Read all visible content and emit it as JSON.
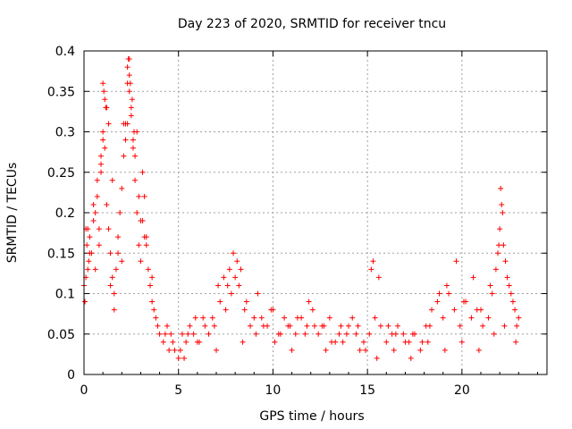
{
  "chart_data": {
    "type": "scatter",
    "title": "Day 223 of 2020, SRMTID for receiver tncu",
    "xlabel": "GPS time / hours",
    "ylabel": "SRMTID / TECUs",
    "xlim": [
      0,
      24.5
    ],
    "ylim": [
      0,
      0.4
    ],
    "xticks": [
      0,
      5,
      10,
      15,
      20
    ],
    "xtick_labels": [
      "0",
      "5",
      "10",
      "15",
      "20"
    ],
    "yticks": [
      0,
      0.05,
      0.1,
      0.15,
      0.2,
      0.25,
      0.3,
      0.35,
      0.4
    ],
    "ytick_labels": [
      "0",
      "0.05",
      "0.1",
      "0.15",
      "0.2",
      "0.25",
      "0.3",
      "0.35",
      "0.4"
    ],
    "grid": true,
    "marker": "+",
    "color": "#ff0000",
    "series": [
      {
        "name": "SRMTID",
        "x": [
          0.0,
          0.05,
          0.1,
          0.15,
          0.2,
          0.25,
          0.3,
          0.4,
          0.5,
          0.6,
          0.7,
          0.8,
          0.9,
          1.0,
          1.1,
          1.2,
          1.3,
          1.4,
          1.5,
          1.6,
          1.7,
          1.8,
          1.9,
          2.0,
          2.1,
          2.2,
          2.3,
          2.4,
          2.5,
          2.6,
          2.7,
          2.8,
          2.9,
          3.0,
          3.1,
          3.2,
          3.3,
          3.4,
          3.5,
          3.6,
          3.7,
          3.8,
          3.9,
          4.0,
          4.2,
          4.4,
          4.6,
          4.8,
          5.0,
          5.2,
          5.4,
          5.6,
          5.8,
          6.0,
          6.3,
          6.6,
          6.9,
          7.2,
          7.5,
          7.8,
          8.0,
          8.2,
          8.5,
          8.8,
          9.1,
          9.4,
          9.7,
          10.0,
          10.3,
          10.6,
          10.9,
          11.2,
          11.5,
          11.8,
          12.1,
          12.4,
          12.7,
          13.0,
          13.3,
          13.6,
          13.9,
          14.2,
          14.5,
          14.8,
          15.1,
          15.4,
          15.7,
          16.0,
          16.3,
          16.6,
          16.9,
          17.2,
          17.5,
          17.8,
          18.1,
          18.4,
          18.7,
          19.0,
          19.3,
          19.6,
          19.9,
          20.2,
          20.5,
          20.8,
          21.1,
          21.4,
          21.6,
          21.8,
          21.9,
          22.0,
          22.1,
          22.2,
          22.4,
          22.6,
          22.8,
          23.0,
          0.1,
          0.3,
          0.6,
          0.9,
          1.2,
          1.5,
          1.8,
          2.1,
          2.4,
          2.7,
          3.0,
          3.3,
          3.6,
          0.2,
          0.5,
          0.8,
          1.0,
          1.3,
          1.6,
          2.0,
          2.3,
          2.6,
          2.9,
          3.2,
          3.5,
          1.0,
          1.1,
          2.3,
          2.4,
          2.5,
          1.05,
          1.15,
          2.35,
          2.45,
          2.55,
          2.65,
          0.7,
          0.9,
          1.4,
          2.2,
          2.8,
          3.1,
          4.3,
          4.7,
          5.1,
          5.5,
          5.9,
          6.4,
          6.8,
          7.1,
          7.4,
          7.7,
          7.9,
          8.1,
          8.3,
          8.6,
          9.0,
          9.5,
          9.9,
          10.4,
          10.8,
          11.3,
          11.7,
          12.2,
          12.6,
          13.1,
          13.5,
          14.0,
          14.4,
          14.9,
          15.2,
          15.3,
          15.6,
          16.1,
          16.5,
          17.0,
          17.4,
          17.9,
          18.3,
          18.8,
          19.2,
          19.7,
          20.1,
          20.6,
          21.0,
          21.5,
          21.95,
          22.05,
          22.15,
          22.3,
          22.5,
          22.7,
          22.9,
          4.5,
          5.3,
          6.1,
          7.0,
          7.6,
          8.4,
          9.2,
          10.1,
          11.0,
          11.9,
          12.8,
          13.7,
          14.6,
          15.5,
          16.4,
          17.3,
          18.2,
          19.1,
          20.0,
          20.9,
          21.7,
          22.25,
          22.85
        ],
        "y": [
          0.11,
          0.09,
          0.12,
          0.16,
          0.18,
          0.14,
          0.17,
          0.15,
          0.19,
          0.13,
          0.22,
          0.18,
          0.25,
          0.3,
          0.28,
          0.21,
          0.18,
          0.15,
          0.12,
          0.1,
          0.13,
          0.17,
          0.2,
          0.23,
          0.27,
          0.31,
          0.36,
          0.39,
          0.33,
          0.28,
          0.24,
          0.2,
          0.16,
          0.14,
          0.19,
          0.22,
          0.17,
          0.13,
          0.11,
          0.09,
          0.08,
          0.07,
          0.06,
          0.05,
          0.04,
          0.06,
          0.05,
          0.03,
          0.02,
          0.05,
          0.04,
          0.06,
          0.05,
          0.04,
          0.07,
          0.05,
          0.06,
          0.09,
          0.08,
          0.1,
          0.12,
          0.11,
          0.08,
          0.06,
          0.05,
          0.07,
          0.06,
          0.08,
          0.05,
          0.07,
          0.06,
          0.05,
          0.07,
          0.06,
          0.08,
          0.05,
          0.06,
          0.07,
          0.04,
          0.06,
          0.05,
          0.07,
          0.06,
          0.04,
          0.05,
          0.07,
          0.06,
          0.04,
          0.05,
          0.06,
          0.05,
          0.04,
          0.05,
          0.03,
          0.06,
          0.08,
          0.09,
          0.07,
          0.1,
          0.08,
          0.06,
          0.09,
          0.07,
          0.08,
          0.06,
          0.07,
          0.1,
          0.13,
          0.15,
          0.18,
          0.21,
          0.16,
          0.12,
          0.1,
          0.08,
          0.07,
          0.18,
          0.15,
          0.2,
          0.26,
          0.33,
          0.24,
          0.15,
          0.31,
          0.35,
          0.27,
          0.19,
          0.16,
          0.12,
          0.13,
          0.21,
          0.16,
          0.29,
          0.31,
          0.08,
          0.14,
          0.31,
          0.29,
          0.22,
          0.17,
          0.11,
          0.36,
          0.34,
          0.38,
          0.37,
          0.32,
          0.35,
          0.33,
          0.39,
          0.36,
          0.34,
          0.3,
          0.24,
          0.27,
          0.11,
          0.29,
          0.3,
          0.25,
          0.05,
          0.04,
          0.03,
          0.05,
          0.07,
          0.06,
          0.07,
          0.11,
          0.12,
          0.13,
          0.15,
          0.14,
          0.13,
          0.09,
          0.07,
          0.06,
          0.08,
          0.05,
          0.06,
          0.07,
          0.05,
          0.06,
          0.06,
          0.04,
          0.05,
          0.06,
          0.05,
          0.03,
          0.13,
          0.14,
          0.12,
          0.06,
          0.05,
          0.04,
          0.05,
          0.04,
          0.06,
          0.1,
          0.11,
          0.14,
          0.09,
          0.12,
          0.08,
          0.11,
          0.16,
          0.23,
          0.2,
          0.14,
          0.11,
          0.09,
          0.06,
          0.03,
          0.02,
          0.04,
          0.03,
          0.11,
          0.04,
          0.1,
          0.04,
          0.03,
          0.09,
          0.03,
          0.04,
          0.03,
          0.02,
          0.03,
          0.02,
          0.04,
          0.03,
          0.04,
          0.03,
          0.05,
          0.06,
          0.04
        ]
      }
    ]
  }
}
